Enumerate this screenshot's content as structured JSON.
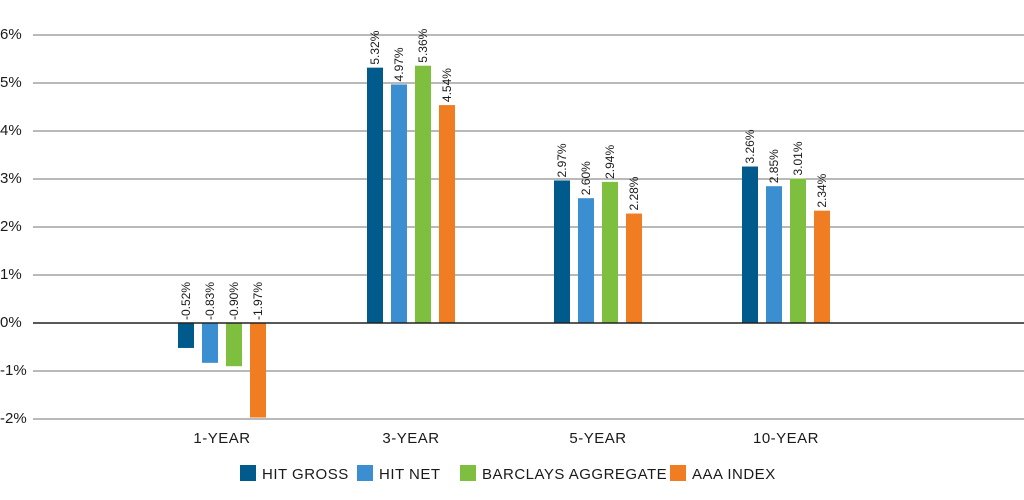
{
  "chart_data": {
    "type": "bar",
    "title": "",
    "xlabel": "",
    "ylabel": "",
    "categories": [
      "1-YEAR",
      "3-YEAR",
      "5-YEAR",
      "10-YEAR"
    ],
    "ylim": [
      -2,
      6
    ],
    "yticks": [
      6,
      5,
      4,
      3,
      2,
      1,
      0,
      -1,
      -2
    ],
    "ytick_labels": [
      "6%",
      "5%",
      "4%",
      "3%",
      "2%",
      "1%",
      "0%",
      "-1%",
      "-2%"
    ],
    "grid": true,
    "legend_position": "bottom",
    "series": [
      {
        "name": "HIT GROSS",
        "color": "#005a8c",
        "values": [
          -0.52,
          5.32,
          2.97,
          3.26
        ],
        "labels": [
          "-0.52%",
          "5.32%",
          "2.97%",
          "3.26%"
        ]
      },
      {
        "name": "HIT NET",
        "color": "#3b8fd1",
        "values": [
          -0.83,
          4.97,
          2.6,
          2.85
        ],
        "labels": [
          "-0.83%",
          "4.97%",
          "2.60%",
          "2.85%"
        ]
      },
      {
        "name": "BARCLAYS AGGREGATE",
        "color": "#7fbf3f",
        "values": [
          -0.9,
          5.36,
          2.94,
          3.01
        ],
        "labels": [
          "-0.90%",
          "5.36%",
          "2.94%",
          "3.01%"
        ]
      },
      {
        "name": "AAA INDEX",
        "color": "#f07d22",
        "values": [
          -1.97,
          4.54,
          2.28,
          2.34
        ],
        "labels": [
          "-1.97%",
          "4.54%",
          "2.28%",
          "2.34%"
        ]
      }
    ]
  }
}
